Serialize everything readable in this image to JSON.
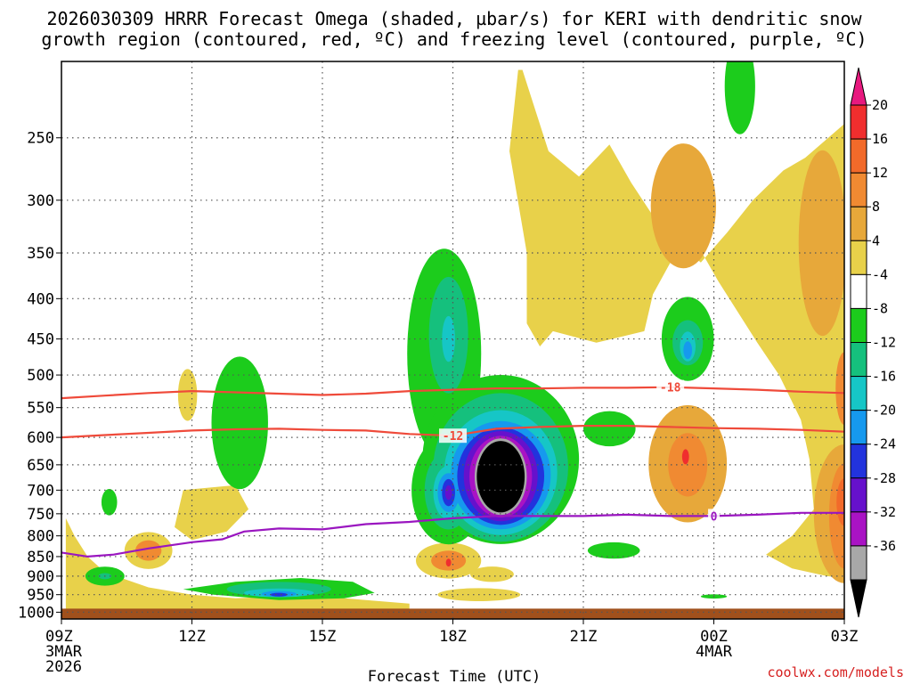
{
  "chart_data": {
    "type": "contour",
    "title_lines": [
      "2026030309 HRRR Forecast Omega (shaded, µbar/s) for KERI with dendritic snow",
      "growth region (contoured, red, ºC) and freezing level (contoured, purple, ºC)"
    ],
    "xlabel": "Forecast Time (UTC)",
    "credit": "coolwx.com/models",
    "x_range": [
      0,
      18
    ],
    "x_ticks": [
      {
        "value": 0,
        "label": "09Z",
        "sub1": "3MAR",
        "sub2": "2026"
      },
      {
        "value": 3,
        "label": "12Z",
        "sub1": "",
        "sub2": ""
      },
      {
        "value": 6,
        "label": "15Z",
        "sub1": "",
        "sub2": ""
      },
      {
        "value": 9,
        "label": "18Z",
        "sub1": "",
        "sub2": ""
      },
      {
        "value": 12,
        "label": "21Z",
        "sub1": "",
        "sub2": ""
      },
      {
        "value": 15,
        "label": "00Z",
        "sub1": "4MAR",
        "sub2": ""
      },
      {
        "value": 18,
        "label": "03Z",
        "sub1": "",
        "sub2": ""
      }
    ],
    "y_ticks": [
      "250",
      "300",
      "350",
      "400",
      "450",
      "500",
      "550",
      "600",
      "650",
      "700",
      "750",
      "800",
      "850",
      "900",
      "950",
      "1000"
    ],
    "y_top_hpa": 200,
    "y_bottom_hpa": 1020,
    "surface_hpa": 1000,
    "colorbar": {
      "labels": [
        "20",
        "16",
        "12",
        "8",
        "4",
        "-4",
        "-8",
        "-12",
        "-16",
        "-20",
        "-24",
        "-28",
        "-32",
        "-36"
      ],
      "colors": [
        "#f02e2e",
        "#f26a2a",
        "#f08a32",
        "#e7a83a",
        "#e8d14a",
        "#ffffff",
        "#1ccc1c",
        "#15c07d",
        "#16c6c6",
        "#1699ee",
        "#2233dd",
        "#6611cc",
        "#a913c4",
        "#a8a8a8"
      ],
      "top_arrow_color": "#e8197f",
      "bottom_arrow_color": "#000000"
    },
    "contour_lines": [
      {
        "name": "dendritic-top",
        "label": "-18",
        "color": "#ef4a3a",
        "points": [
          [
            0,
            535
          ],
          [
            1,
            531
          ],
          [
            2,
            527
          ],
          [
            3,
            524
          ],
          [
            4,
            526
          ],
          [
            5,
            528
          ],
          [
            6,
            530
          ],
          [
            7,
            528
          ],
          [
            8,
            524
          ],
          [
            9,
            522
          ],
          [
            10,
            520
          ],
          [
            11,
            520
          ],
          [
            12,
            519
          ],
          [
            13,
            519
          ],
          [
            14,
            518
          ],
          [
            15,
            520
          ],
          [
            16,
            522
          ],
          [
            17,
            525
          ],
          [
            18,
            527
          ]
        ]
      },
      {
        "name": "dendritic-bottom",
        "label": "-12",
        "color": "#ef4a3a",
        "points": [
          [
            0,
            600
          ],
          [
            1,
            596
          ],
          [
            2,
            592
          ],
          [
            3,
            588
          ],
          [
            4,
            586
          ],
          [
            5,
            585
          ],
          [
            6,
            587
          ],
          [
            7,
            588
          ],
          [
            8,
            594
          ],
          [
            9,
            597
          ],
          [
            10,
            585
          ],
          [
            11,
            582
          ],
          [
            12,
            580
          ],
          [
            13,
            580
          ],
          [
            14,
            582
          ],
          [
            15,
            584
          ],
          [
            16,
            585
          ],
          [
            17,
            587
          ],
          [
            18,
            590
          ]
        ]
      },
      {
        "name": "freezing-level",
        "label": "0",
        "color": "#9a16c0",
        "points": [
          [
            0,
            840
          ],
          [
            0.6,
            850
          ],
          [
            1.2,
            845
          ],
          [
            2,
            830
          ],
          [
            3,
            815
          ],
          [
            3.7,
            808
          ],
          [
            4.2,
            790
          ],
          [
            5,
            783
          ],
          [
            6,
            785
          ],
          [
            7,
            773
          ],
          [
            8,
            768
          ],
          [
            9,
            760
          ],
          [
            10,
            755
          ],
          [
            11,
            755
          ],
          [
            12,
            755
          ],
          [
            13,
            752
          ],
          [
            14,
            755
          ],
          [
            15,
            755
          ],
          [
            16,
            752
          ],
          [
            17,
            748
          ],
          [
            18,
            748
          ]
        ]
      }
    ],
    "omega_regions": [
      {
        "level": "4",
        "color": "#e8d14a",
        "shapes": [
          {
            "shape": "poly",
            "points": [
              [
                0.1,
                760
              ],
              [
                0.3,
                800
              ],
              [
                0.6,
                850
              ],
              [
                1.0,
                890
              ],
              [
                2,
                930
              ],
              [
                3,
                950
              ],
              [
                4,
                960
              ],
              [
                5,
                955
              ],
              [
                6,
                955
              ],
              [
                7,
                965
              ],
              [
                8,
                975
              ],
              [
                8,
                1000
              ],
              [
                0.1,
                1000
              ]
            ]
          },
          {
            "shape": "poly",
            "points": [
              [
                2.8,
                700
              ],
              [
                4,
                690
              ],
              [
                4.3,
                740
              ],
              [
                3.8,
                790
              ],
              [
                3,
                810
              ],
              [
                2.6,
                780
              ]
            ]
          },
          {
            "shape": "ell",
            "x": 2.0,
            "hpa": 835,
            "rx": 0.55,
            "rh": 45
          },
          {
            "shape": "ell",
            "x": 2.9,
            "hpa": 530,
            "rx": 0.22,
            "rh": 40
          },
          {
            "shape": "ell",
            "x": 8.9,
            "hpa": 860,
            "rx": 0.75,
            "rh": 45
          },
          {
            "shape": "ell",
            "x": 9.9,
            "hpa": 895,
            "rx": 0.5,
            "rh": 20
          },
          {
            "shape": "ell",
            "x": 9.6,
            "hpa": 950,
            "rx": 0.95,
            "rh": 18
          },
          {
            "shape": "poly",
            "points": [
              [
                10.6,
                205
              ],
              [
                11.2,
                260
              ],
              [
                11.9,
                280
              ],
              [
                12.6,
                255
              ],
              [
                13.1,
                285
              ],
              [
                13.7,
                320
              ],
              [
                14.3,
                345
              ],
              [
                14.7,
                360
              ],
              [
                15.3,
                330
              ],
              [
                15.9,
                300
              ],
              [
                16.6,
                275
              ],
              [
                17.1,
                265
              ],
              [
                18,
                240
              ],
              [
                18,
                905
              ],
              [
                17.6,
                900
              ],
              [
                16.8,
                880
              ],
              [
                16.2,
                845
              ],
              [
                16.8,
                800
              ],
              [
                17.3,
                740
              ],
              [
                17.2,
                640
              ],
              [
                17.0,
                570
              ],
              [
                16.5,
                500
              ],
              [
                16.0,
                455
              ],
              [
                15.1,
                380
              ],
              [
                14.6,
                340
              ],
              [
                14.0,
                360
              ],
              [
                13.6,
                395
              ],
              [
                13.4,
                440
              ],
              [
                12.3,
                455
              ],
              [
                11.3,
                440
              ],
              [
                11.0,
                460
              ],
              [
                10.7,
                430
              ],
              [
                10.7,
                350
              ],
              [
                10.3,
                260
              ],
              [
                10.5,
                205
              ]
            ]
          }
        ]
      },
      {
        "level": "8",
        "color": "#e7a83a",
        "shapes": [
          {
            "shape": "ell",
            "x": 14.3,
            "hpa": 305,
            "rx": 0.75,
            "rh": 55
          },
          {
            "shape": "ell",
            "x": 14.4,
            "hpa": 648,
            "rx": 0.9,
            "rh": 110
          },
          {
            "shape": "ell",
            "x": 17.5,
            "hpa": 340,
            "rx": 0.55,
            "rh": 90
          },
          {
            "shape": "ell",
            "x": 18,
            "hpa": 750,
            "rx": 0.7,
            "rh": 150
          }
        ]
      },
      {
        "level": "12",
        "color": "#f08a32",
        "shapes": [
          {
            "shape": "ell",
            "x": 14.4,
            "hpa": 650,
            "rx": 0.45,
            "rh": 60
          },
          {
            "shape": "ell",
            "x": 18,
            "hpa": 520,
            "rx": 0.2,
            "rh": 55
          },
          {
            "shape": "ell",
            "x": 18,
            "hpa": 755,
            "rx": 0.35,
            "rh": 115
          },
          {
            "shape": "ell",
            "x": 2.0,
            "hpa": 835,
            "rx": 0.3,
            "rh": 25
          },
          {
            "shape": "ell",
            "x": 8.9,
            "hpa": 860,
            "rx": 0.4,
            "rh": 25
          }
        ]
      },
      {
        "level": "16",
        "color": "#f26a2a",
        "shapes": [
          {
            "shape": "ell",
            "x": 18,
            "hpa": 725,
            "rx": 0.18,
            "rh": 50
          }
        ]
      },
      {
        "level": "20",
        "color": "#f02e2e",
        "shapes": [
          {
            "shape": "ell",
            "x": 14.35,
            "hpa": 635,
            "rx": 0.08,
            "rh": 14
          },
          {
            "shape": "ell",
            "x": 8.9,
            "hpa": 865,
            "rx": 0.06,
            "rh": 10
          }
        ]
      },
      {
        "level": "-4",
        "color": "#ffffff",
        "shapes": [
          {
            "shape": "ell",
            "x": 10.9,
            "hpa": 640,
            "rx": 0.3,
            "rh": 80
          }
        ]
      },
      {
        "level": "-8",
        "color": "#1ccc1c",
        "shapes": [
          {
            "shape": "ell",
            "x": 1.0,
            "hpa": 900,
            "rx": 0.45,
            "rh": 25
          },
          {
            "shape": "ell",
            "x": 1.1,
            "hpa": 725,
            "rx": 0.18,
            "rh": 28
          },
          {
            "shape": "ell",
            "x": 4.1,
            "hpa": 575,
            "rx": 0.65,
            "rh": 110
          },
          {
            "shape": "poly",
            "points": [
              [
                2.8,
                935
              ],
              [
                4,
                915
              ],
              [
                5.5,
                905
              ],
              [
                6.7,
                915
              ],
              [
                7.2,
                945
              ],
              [
                6.5,
                960
              ],
              [
                5,
                965
              ],
              [
                3.5,
                950
              ]
            ]
          },
          {
            "shape": "ell",
            "x": 8.8,
            "hpa": 470,
            "rx": 0.85,
            "rh": 140
          },
          {
            "shape": "ell",
            "x": 8.9,
            "hpa": 700,
            "rx": 0.85,
            "rh": 110
          },
          {
            "shape": "ell",
            "x": 10.1,
            "hpa": 640,
            "rx": 1.8,
            "rh": 155
          },
          {
            "shape": "ell",
            "x": 12.6,
            "hpa": 585,
            "rx": 0.6,
            "rh": 30
          },
          {
            "shape": "ell",
            "x": 12.7,
            "hpa": 835,
            "rx": 0.6,
            "rh": 20
          },
          {
            "shape": "ell",
            "x": 14.4,
            "hpa": 450,
            "rx": 0.6,
            "rh": 55
          },
          {
            "shape": "ell",
            "x": 15.6,
            "hpa": 215,
            "rx": 0.35,
            "rh": 30
          },
          {
            "shape": "ell",
            "x": 15.0,
            "hpa": 955,
            "rx": 0.3,
            "rh": 6
          }
        ]
      },
      {
        "level": "-12",
        "color": "#15c07d",
        "shapes": [
          {
            "shape": "ell",
            "x": 8.9,
            "hpa": 445,
            "rx": 0.45,
            "rh": 75
          },
          {
            "shape": "ell",
            "x": 8.9,
            "hpa": 700,
            "rx": 0.55,
            "rh": 80
          },
          {
            "shape": "ell",
            "x": 10.1,
            "hpa": 655,
            "rx": 1.55,
            "rh": 140
          },
          {
            "shape": "ell",
            "x": 14.4,
            "hpa": 455,
            "rx": 0.35,
            "rh": 30
          },
          {
            "shape": "ell",
            "x": 1.0,
            "hpa": 900,
            "rx": 0.15,
            "rh": 8
          },
          {
            "shape": "ell",
            "x": 5.0,
            "hpa": 935,
            "rx": 1.2,
            "rh": 20
          }
        ]
      },
      {
        "level": "-16",
        "color": "#16c6c6",
        "shapes": [
          {
            "shape": "ell",
            "x": 8.9,
            "hpa": 705,
            "rx": 0.35,
            "rh": 55
          },
          {
            "shape": "ell",
            "x": 10.1,
            "hpa": 665,
            "rx": 1.3,
            "rh": 120
          },
          {
            "shape": "ell",
            "x": 14.4,
            "hpa": 460,
            "rx": 0.18,
            "rh": 20
          },
          {
            "shape": "ell",
            "x": 5.0,
            "hpa": 945,
            "rx": 0.8,
            "rh": 12
          },
          {
            "shape": "ell",
            "x": 8.9,
            "hpa": 450,
            "rx": 0.15,
            "rh": 30
          }
        ]
      },
      {
        "level": "-20",
        "color": "#1699ee",
        "shapes": [
          {
            "shape": "ell",
            "x": 8.9,
            "hpa": 705,
            "rx": 0.25,
            "rh": 40
          },
          {
            "shape": "ell",
            "x": 10.1,
            "hpa": 670,
            "rx": 1.15,
            "rh": 105
          },
          {
            "shape": "ell",
            "x": 5.0,
            "hpa": 948,
            "rx": 0.4,
            "rh": 8
          },
          {
            "shape": "ell",
            "x": 14.4,
            "hpa": 465,
            "rx": 0.1,
            "rh": 12
          }
        ]
      },
      {
        "level": "-24",
        "color": "#2233dd",
        "shapes": [
          {
            "shape": "ell",
            "x": 8.9,
            "hpa": 705,
            "rx": 0.15,
            "rh": 28
          },
          {
            "shape": "ell",
            "x": 10.1,
            "hpa": 672,
            "rx": 1.0,
            "rh": 95
          },
          {
            "shape": "ell",
            "x": 5.0,
            "hpa": 950,
            "rx": 0.2,
            "rh": 5
          }
        ]
      },
      {
        "level": "-28",
        "color": "#6611cc",
        "shapes": [
          {
            "shape": "ell",
            "x": 8.9,
            "hpa": 705,
            "rx": 0.08,
            "rh": 15
          },
          {
            "shape": "ell",
            "x": 10.1,
            "hpa": 672,
            "rx": 0.85,
            "rh": 88
          }
        ]
      },
      {
        "level": "-32",
        "color": "#a913c4",
        "shapes": [
          {
            "shape": "ell",
            "x": 10.1,
            "hpa": 673,
            "rx": 0.72,
            "rh": 80
          }
        ]
      },
      {
        "level": "-36",
        "color": "#a8a8a8",
        "shapes": [
          {
            "shape": "ell",
            "x": 10.1,
            "hpa": 673,
            "rx": 0.6,
            "rh": 75
          }
        ]
      },
      {
        "level": "-40",
        "color": "#000000",
        "shapes": [
          {
            "shape": "ell",
            "x": 10.1,
            "hpa": 673,
            "rx": 0.55,
            "rh": 70
          }
        ]
      }
    ],
    "ground_color": "#a0501c"
  }
}
